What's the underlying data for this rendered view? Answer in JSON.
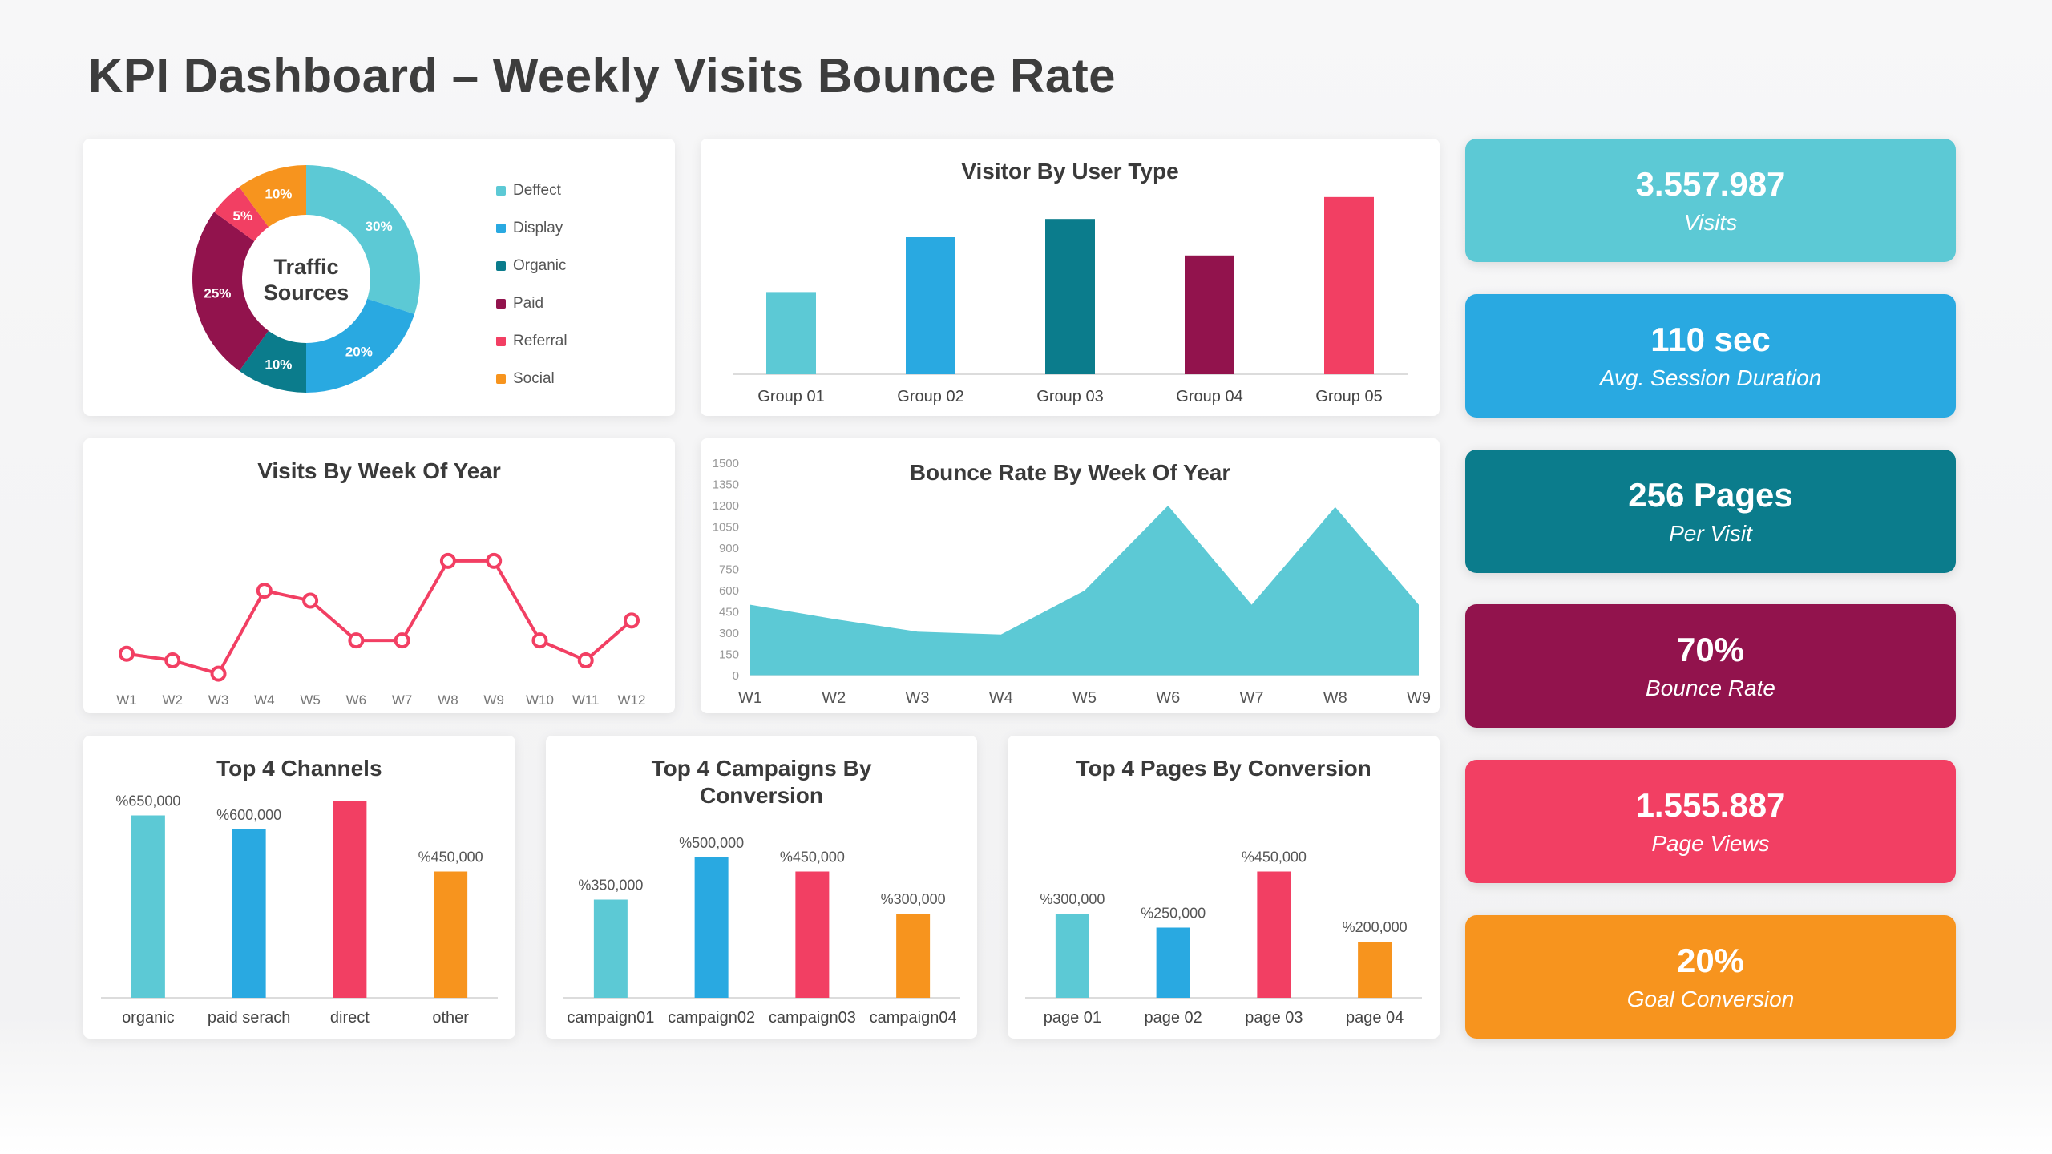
{
  "page_title": "KPI Dashboard – Weekly Visits Bounce Rate",
  "palette": {
    "teal": "#5cc9d5",
    "blue": "#29a9e1",
    "dark_teal": "#0b7c8c",
    "maroon": "#92134d",
    "pink": "#f23f63",
    "orange": "#f7941e",
    "title_text": "#3d3d3d",
    "axis_text": "#666666",
    "card_bg": "#ffffff"
  },
  "kpi_cards": [
    {
      "value": "3.557.987",
      "label": "Visits",
      "color": "#5cc9d5"
    },
    {
      "value": "110 sec",
      "label": "Avg. Session Duration",
      "color": "#29a9e1"
    },
    {
      "value": "256 Pages",
      "label": "Per Visit",
      "color": "#0b7c8c"
    },
    {
      "value": "70%",
      "label": "Bounce Rate",
      "color": "#92134d"
    },
    {
      "value": "1.555.887",
      "label": "Page Views",
      "color": "#f23f63"
    },
    {
      "value": "20%",
      "label": "Goal Conversion",
      "color": "#f7941e"
    }
  ],
  "chart_data": [
    {
      "id": "traffic-sources",
      "type": "pie",
      "donut": true,
      "title": "Traffic Sources",
      "legend_position": "right",
      "slices": [
        {
          "label": "Deffect",
          "value": 30,
          "pct_label": "30%",
          "color": "#5cc9d5"
        },
        {
          "label": "Display",
          "value": 20,
          "pct_label": "20%",
          "color": "#29a9e1"
        },
        {
          "label": "Organic",
          "value": 10,
          "pct_label": "10%",
          "color": "#0b7c8c"
        },
        {
          "label": "Paid",
          "value": 25,
          "pct_label": "25%",
          "color": "#92134d"
        },
        {
          "label": "Referral",
          "value": 5,
          "pct_label": "5%",
          "color": "#f23f63"
        },
        {
          "label": "Social",
          "value": 10,
          "pct_label": "10%",
          "color": "#f7941e"
        }
      ]
    },
    {
      "id": "visitor-by-user-type",
      "type": "bar",
      "title": "Visitor By User Type",
      "categories": [
        "Group 01",
        "Group 02",
        "Group 03",
        "Group 04",
        "Group 05"
      ],
      "values": [
        45,
        75,
        85,
        65,
        97
      ],
      "colors": [
        "#5cc9d5",
        "#29a9e1",
        "#0b7c8c",
        "#92134d",
        "#f23f63"
      ],
      "ylim": [
        0,
        100
      ],
      "value_labels": []
    },
    {
      "id": "visits-by-week-of-year",
      "type": "line",
      "title": "Visits By Week Of Year",
      "x": [
        "W1",
        "W2",
        "W3",
        "W4",
        "W5",
        "W6",
        "W7",
        "W8",
        "W9",
        "W10",
        "W11",
        "W12"
      ],
      "values": [
        18,
        14,
        6,
        56,
        50,
        26,
        26,
        74,
        74,
        26,
        14,
        38
      ],
      "ylim": [
        0,
        100
      ],
      "color": "#f23f63",
      "markers": true
    },
    {
      "id": "bounce-rate-by-week-of-year",
      "type": "area",
      "title": "Bounce Rate By Week Of Year",
      "x": [
        "W1",
        "W2",
        "W3",
        "W4",
        "W5",
        "W6",
        "W7",
        "W8",
        "W9"
      ],
      "values": [
        500,
        400,
        310,
        290,
        600,
        1200,
        500,
        1190,
        500
      ],
      "ylim": [
        0,
        1500
      ],
      "yticks": [
        0,
        150,
        300,
        450,
        600,
        750,
        900,
        1050,
        1200,
        1350,
        1500
      ],
      "color": "#5cc9d5"
    },
    {
      "id": "top-4-channels",
      "type": "bar",
      "title": "Top 4 Channels",
      "categories": [
        "organic",
        "paid serach",
        "direct",
        "other"
      ],
      "values": [
        650000,
        600000,
        700000,
        450000
      ],
      "value_labels": [
        "%650,000",
        "%600,000",
        "",
        "%450,000"
      ],
      "colors": [
        "#5cc9d5",
        "#29a9e1",
        "#f23f63",
        "#f7941e"
      ],
      "ylim": [
        0,
        900000
      ]
    },
    {
      "id": "top-4-campaigns-by-conversion",
      "type": "bar",
      "title": "Top 4 Campaigns By Conversion",
      "categories": [
        "campaign01",
        "campaign02",
        "campaign03",
        "campaign04"
      ],
      "values": [
        350000,
        500000,
        450000,
        300000
      ],
      "value_labels": [
        "%350,000",
        "%500,000",
        "%450,000",
        "%300,000"
      ],
      "colors": [
        "#5cc9d5",
        "#29a9e1",
        "#f23f63",
        "#f7941e"
      ],
      "ylim": [
        0,
        900000
      ]
    },
    {
      "id": "top-4-pages-by-conversion",
      "type": "bar",
      "title": "Top 4 Pages By Conversion",
      "categories": [
        "page 01",
        "page 02",
        "page 03",
        "page 04"
      ],
      "values": [
        300000,
        250000,
        450000,
        200000
      ],
      "value_labels": [
        "%300,000",
        "%250,000",
        "%450,000",
        "%200,000"
      ],
      "colors": [
        "#5cc9d5",
        "#29a9e1",
        "#f23f63",
        "#f7941e"
      ],
      "ylim": [
        0,
        900000
      ]
    }
  ]
}
